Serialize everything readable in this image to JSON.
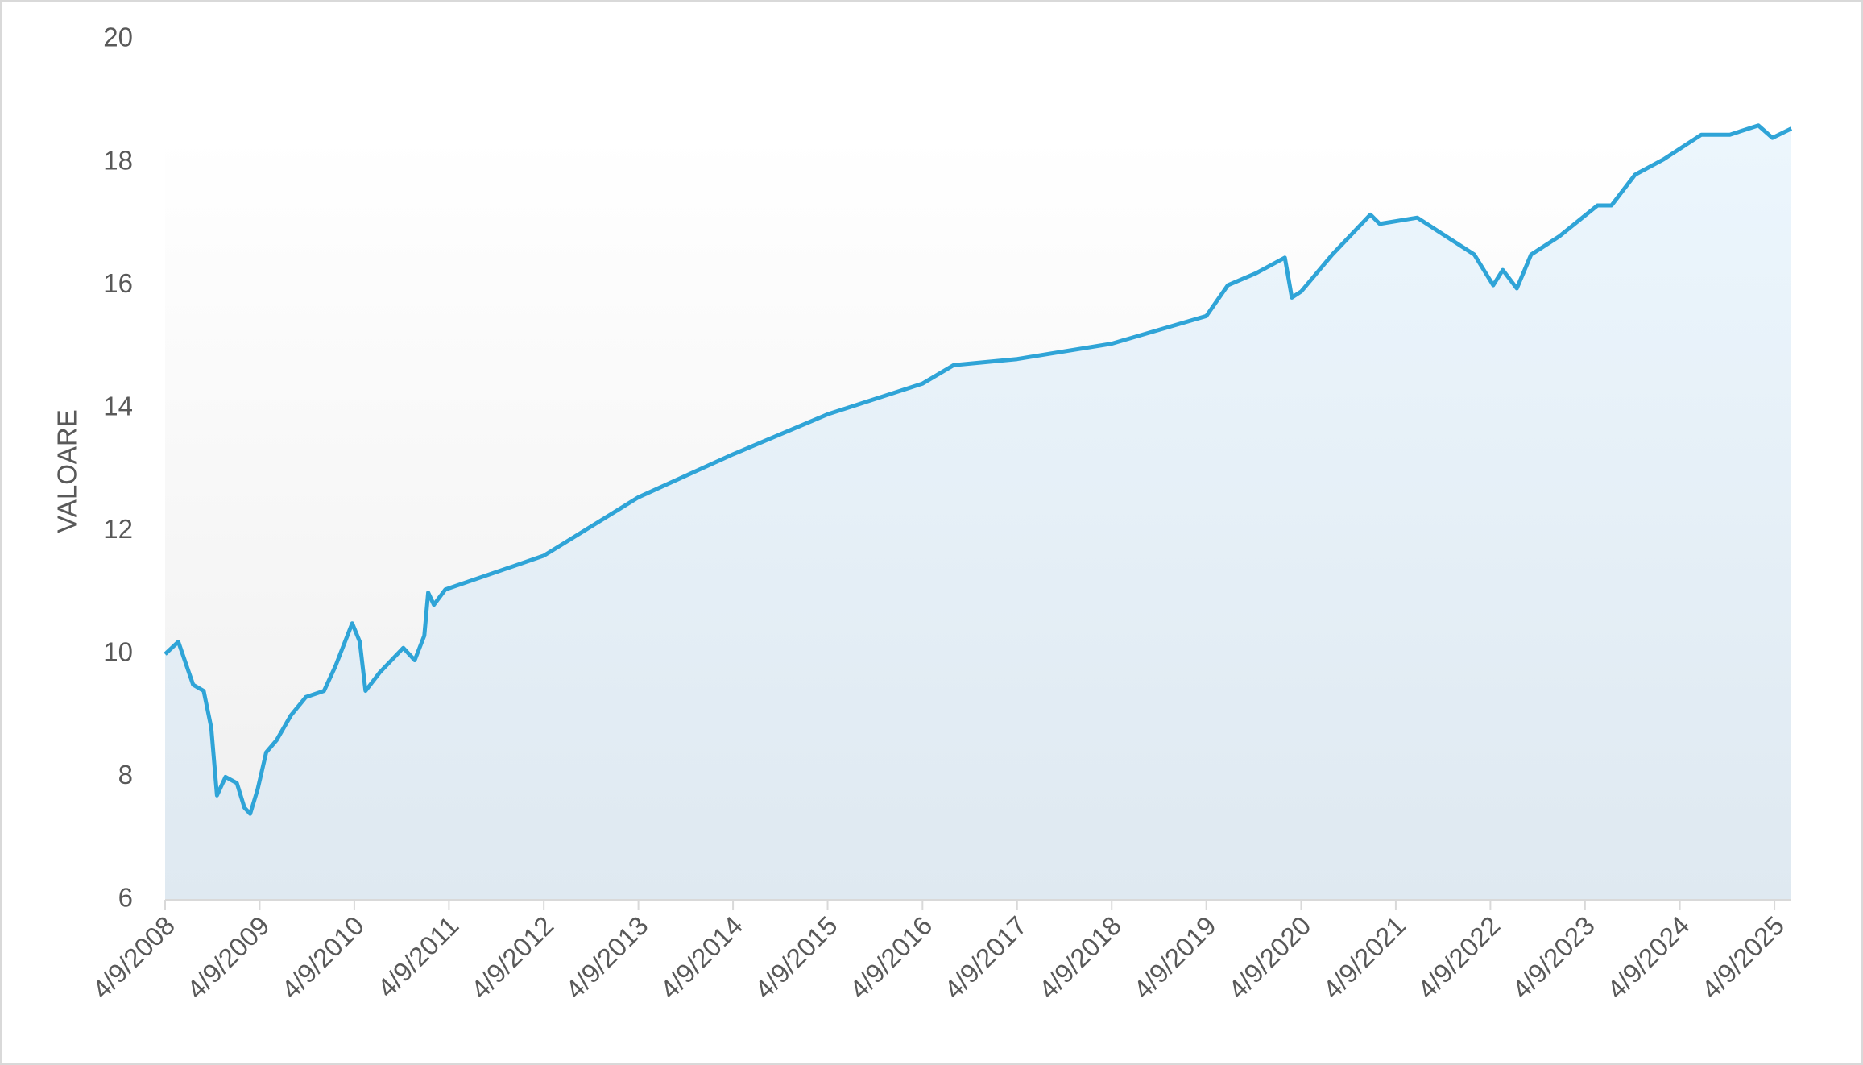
{
  "chart_data": {
    "type": "area",
    "y_label": "VALOARE",
    "x": [
      "2008-04-09",
      "2008-05-30",
      "2008-07-26",
      "2008-09-05",
      "2008-10-04",
      "2008-10-26",
      "2008-11-28",
      "2009-01-11",
      "2009-02-09",
      "2009-03-03",
      "2009-04-01",
      "2009-05-04",
      "2009-06-13",
      "2009-08-07",
      "2009-10-04",
      "2009-12-13",
      "2010-01-26",
      "2010-04-01",
      "2010-04-30",
      "2010-05-22",
      "2010-07-16",
      "2010-10-15",
      "2010-11-28",
      "2011-01-04",
      "2011-01-19",
      "2011-02-10",
      "2011-03-26",
      "2012-04-09",
      "2013-04-09",
      "2014-04-09",
      "2015-04-09",
      "2016-04-09",
      "2016-08-07",
      "2017-04-09",
      "2018-04-09",
      "2019-04-09",
      "2019-07-01",
      "2019-10-19",
      "2020-02-06",
      "2020-03-04",
      "2020-04-09",
      "2020-08-07",
      "2021-01-01",
      "2021-02-06",
      "2021-07-01",
      "2021-10-19",
      "2022-02-06",
      "2022-04-20",
      "2022-05-27",
      "2022-07-20",
      "2022-09-13",
      "2023-01-01",
      "2023-05-27",
      "2023-07-20",
      "2023-10-19",
      "2024-02-06",
      "2024-07-01",
      "2024-10-19",
      "2025-02-06",
      "2025-04-01",
      "2025-06-13"
    ],
    "values": [
      10.0,
      10.2,
      9.5,
      9.4,
      8.8,
      7.7,
      8.0,
      7.9,
      7.5,
      7.4,
      7.8,
      8.4,
      8.6,
      9.0,
      9.3,
      9.4,
      9.8,
      10.5,
      10.2,
      9.4,
      9.7,
      10.1,
      9.9,
      10.3,
      11.0,
      10.8,
      11.05,
      11.6,
      12.55,
      13.25,
      13.9,
      14.4,
      14.7,
      14.8,
      15.05,
      15.5,
      16.0,
      16.2,
      16.45,
      15.8,
      15.9,
      16.5,
      17.15,
      17.0,
      17.1,
      16.8,
      16.5,
      16.0,
      16.25,
      15.95,
      16.5,
      16.8,
      17.3,
      17.3,
      17.8,
      18.05,
      18.45,
      18.45,
      18.6,
      18.4,
      18.55
    ],
    "color": "#2fa4d7",
    "xlim": [
      "2008-04-09",
      "2025-06-13"
    ],
    "xticks": [
      {
        "value": "2008-04-09",
        "label": "4/9/2008"
      },
      {
        "value": "2009-04-09",
        "label": "4/9/2009"
      },
      {
        "value": "2010-04-09",
        "label": "4/9/2010"
      },
      {
        "value": "2011-04-09",
        "label": "4/9/2011"
      },
      {
        "value": "2012-04-09",
        "label": "4/9/2012"
      },
      {
        "value": "2013-04-09",
        "label": "4/9/2013"
      },
      {
        "value": "2014-04-09",
        "label": "4/9/2014"
      },
      {
        "value": "2015-04-09",
        "label": "4/9/2015"
      },
      {
        "value": "2016-04-09",
        "label": "4/9/2016"
      },
      {
        "value": "2017-04-09",
        "label": "4/9/2017"
      },
      {
        "value": "2018-04-09",
        "label": "4/9/2018"
      },
      {
        "value": "2019-04-09",
        "label": "4/9/2019"
      },
      {
        "value": "2020-04-09",
        "label": "4/9/2020"
      },
      {
        "value": "2021-04-09",
        "label": "4/9/2021"
      },
      {
        "value": "2022-04-09",
        "label": "4/9/2022"
      },
      {
        "value": "2023-04-09",
        "label": "4/9/2023"
      },
      {
        "value": "2024-04-09",
        "label": "4/9/2024"
      },
      {
        "value": "2025-04-09",
        "label": "4/9/2025"
      }
    ],
    "ylim": [
      6,
      20
    ],
    "yticks": [
      6,
      8,
      10,
      12,
      14,
      16,
      18,
      20
    ],
    "grid": false
  }
}
